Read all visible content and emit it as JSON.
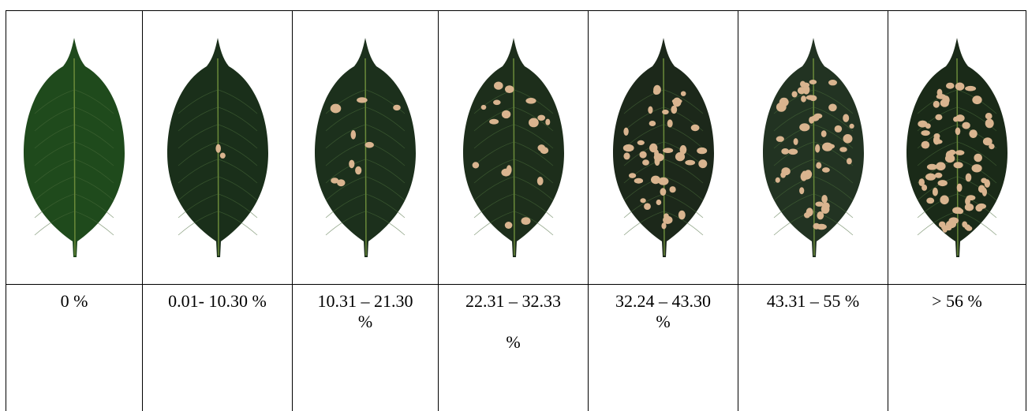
{
  "table": {
    "labels": [
      [
        "0 %"
      ],
      [
        "0.01- 10.30 %"
      ],
      [
        "10.31 – 21.30 %"
      ],
      [
        "22.31 – 32.33",
        "%"
      ],
      [
        "32.24 – 43.30 %"
      ],
      [
        "43.31 – 55 %"
      ],
      [
        "> 56 %"
      ]
    ]
  }
}
